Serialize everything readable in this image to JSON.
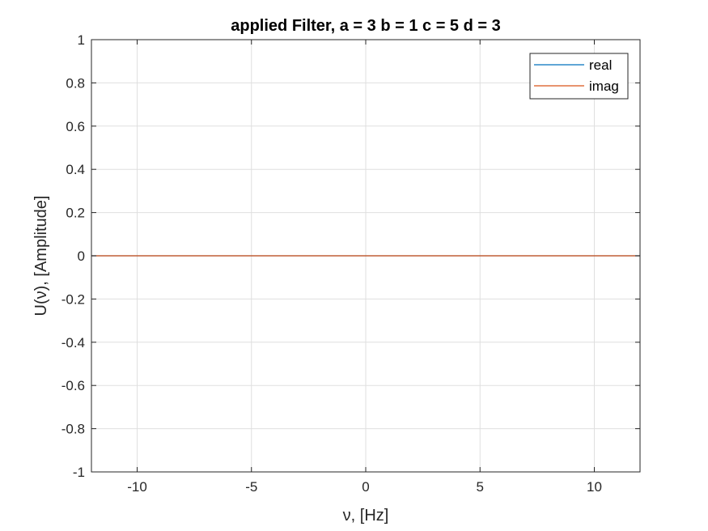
{
  "chart_data": {
    "type": "line",
    "title": "applied Filter, a = 3 b = 1 c = 5 d = 3",
    "xlabel": "ν, [Hz]",
    "ylabel": "U(ν), [Amplitude]",
    "xlim": [
      -12,
      12
    ],
    "ylim": [
      -1,
      1
    ],
    "xticks": [
      -10,
      -5,
      0,
      5,
      10
    ],
    "xtick_labels": [
      "-10",
      "-5",
      "0",
      "5",
      "10"
    ],
    "yticks": [
      -1,
      -0.8,
      -0.6,
      -0.4,
      -0.2,
      0,
      0.2,
      0.4,
      0.6,
      0.8,
      1
    ],
    "ytick_labels": [
      "-1",
      "-0.8",
      "-0.6",
      "-0.4",
      "-0.2",
      "0",
      "0.2",
      "0.4",
      "0.6",
      "0.8",
      "1"
    ],
    "grid": true,
    "legend_position": "top-right",
    "series": [
      {
        "name": "real",
        "color": "#0072BD",
        "x": [
          -12,
          12
        ],
        "y": [
          0,
          0
        ]
      },
      {
        "name": "imag",
        "color": "#D95319",
        "x": [
          -12,
          12
        ],
        "y": [
          0,
          0
        ]
      }
    ]
  }
}
